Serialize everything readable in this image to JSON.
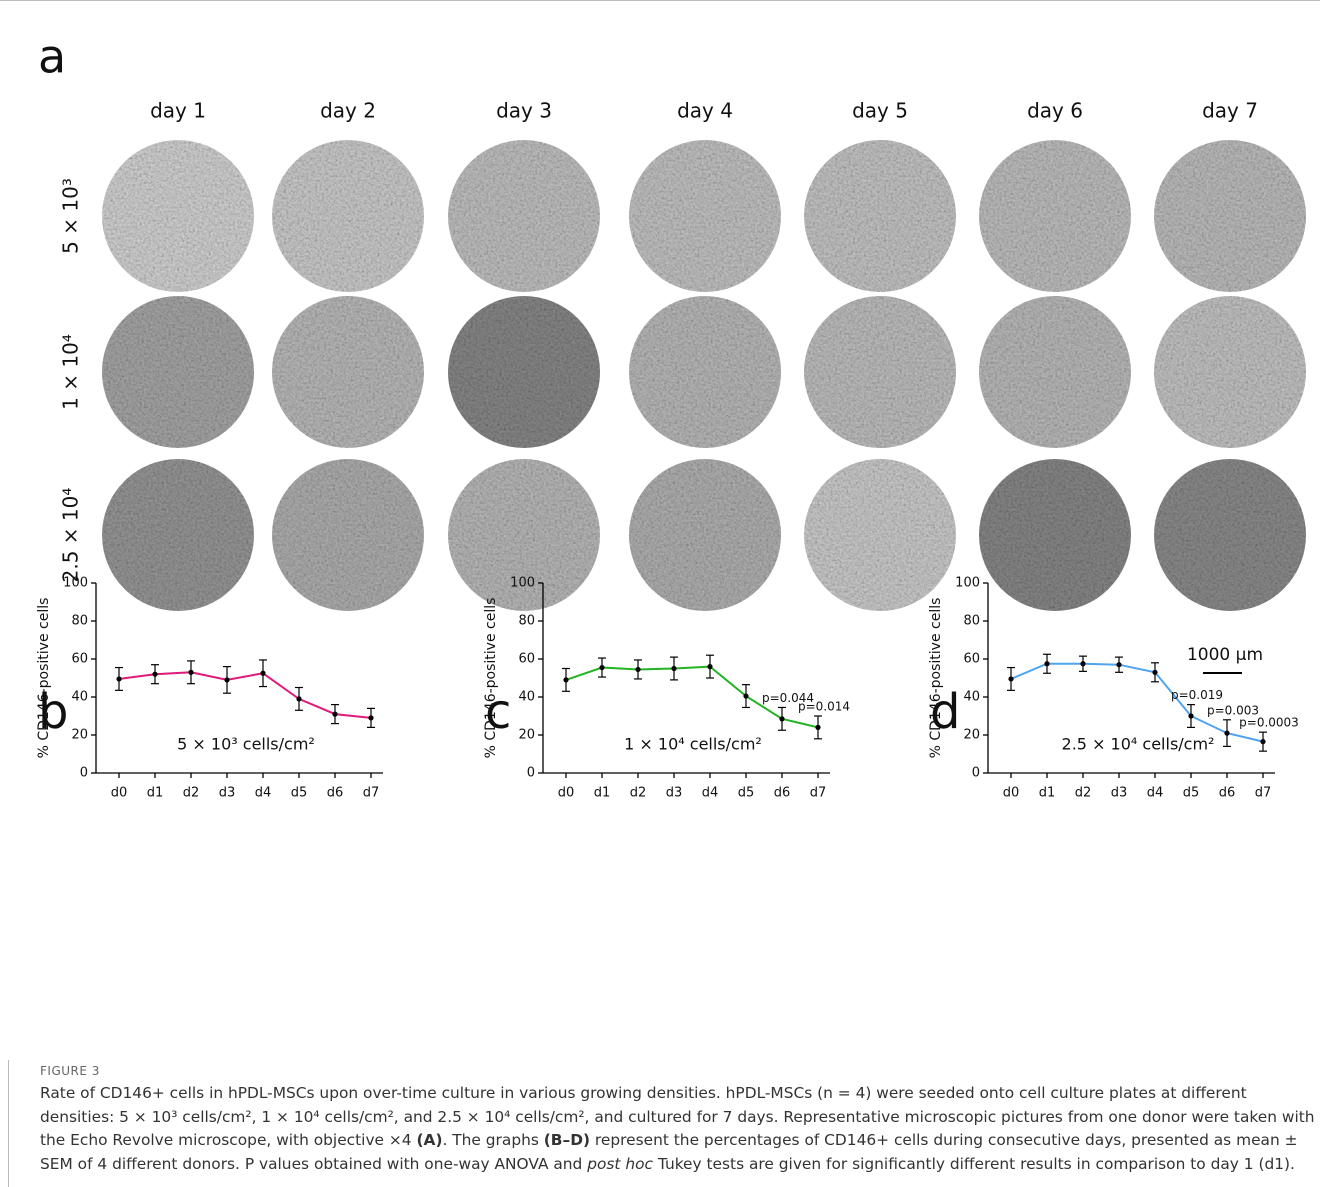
{
  "panel_a": {
    "label": "a",
    "columns": [
      "day 1",
      "day 2",
      "day 3",
      "day 4",
      "day 5",
      "day 6",
      "day 7"
    ],
    "rows": [
      "5 × 10³",
      "1 × 10⁴",
      "2.5 × 10⁴"
    ],
    "scale_bar": "1000 µm"
  },
  "chart_data": [
    {
      "type": "line",
      "panel_label": "b",
      "title": "5 × 10³ cells/cm²",
      "y_label": "% CD146-positive cells",
      "categories": [
        "d0",
        "d1",
        "d2",
        "d3",
        "d4",
        "d5",
        "d6",
        "d7"
      ],
      "series": [
        {
          "color": "#e0197a",
          "values": [
            49.5,
            52,
            53,
            49,
            52.5,
            39,
            31,
            29
          ],
          "errors": [
            6,
            5,
            6,
            7,
            7,
            6,
            5,
            5
          ]
        }
      ],
      "annotations": [
        null,
        null,
        null,
        null,
        null,
        null,
        null,
        null
      ],
      "ylim": [
        0,
        100
      ],
      "yticks": [
        0,
        20,
        40,
        60,
        80,
        100
      ]
    },
    {
      "type": "line",
      "panel_label": "c",
      "title": "1 × 10⁴ cells/cm²",
      "y_label": "% CD146-positive cells",
      "categories": [
        "d0",
        "d1",
        "d2",
        "d3",
        "d4",
        "d5",
        "d6",
        "d7"
      ],
      "series": [
        {
          "color": "#22b422",
          "values": [
            49,
            55.5,
            54.5,
            55,
            56,
            40.5,
            28.5,
            24
          ],
          "errors": [
            6,
            5,
            5,
            6,
            6,
            6,
            6,
            6
          ]
        }
      ],
      "annotations": [
        null,
        null,
        null,
        null,
        null,
        null,
        "p=0.044",
        "p=0.014"
      ],
      "ylim": [
        0,
        100
      ],
      "yticks": [
        0,
        20,
        40,
        60,
        80,
        100
      ]
    },
    {
      "type": "line",
      "panel_label": "d",
      "title": "2.5 × 10⁴ cells/cm²",
      "y_label": "% CD146-positive cells",
      "categories": [
        "d0",
        "d1",
        "d2",
        "d3",
        "d4",
        "d5",
        "d6",
        "d7"
      ],
      "series": [
        {
          "color": "#4fa3ef",
          "values": [
            49.5,
            57.5,
            57.5,
            57,
            53,
            30,
            21,
            16.5
          ],
          "errors": [
            6,
            5,
            4,
            4,
            5,
            6,
            7,
            5
          ]
        }
      ],
      "annotations": [
        null,
        null,
        null,
        null,
        null,
        "p=0.019",
        "p=0.003",
        "p=0.0003"
      ],
      "ylim": [
        0,
        100
      ],
      "yticks": [
        0,
        20,
        40,
        60,
        80,
        100
      ]
    }
  ],
  "caption": {
    "label": "FIGURE 3",
    "text": [
      "Rate of CD146+ cells in hPDL-MSCs upon over-time culture in various growing densities. hPDL-MSCs (n = 4) were seeded onto cell culture plates at different densities: 5 × 10³ cells/cm², 1 × 10⁴ cells/cm², and 2.5 × 10⁴ cells/cm², and cultured for 7 days. Representative microscopic pictures from one donor were taken with the Echo Revolve microscope, with objective ×4 ",
      "(A)",
      ". The graphs ",
      "(B–D)",
      " represent the percentages of CD146+ cells during consecutive days, presented as mean ± SEM of 4 different donors. P values obtained with one-way ANOVA and ",
      "post hoc",
      " Tukey tests are given for significantly different results in comparison to day 1 (d1)."
    ]
  }
}
